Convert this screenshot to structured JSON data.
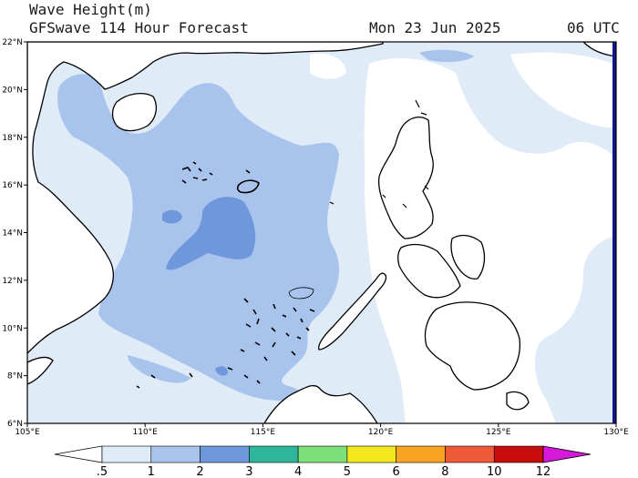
{
  "header": {
    "variable": "Wave Height(m)",
    "model": "GFSwave 114 Hour Forecast",
    "date": "Mon 23 Jun 2025",
    "time": "06 UTC"
  },
  "map": {
    "lat_labels": [
      "6°N",
      "8°N",
      "10°N",
      "12°N",
      "14°N",
      "16°N",
      "18°N",
      "20°N",
      "22°N"
    ],
    "lon_labels": [
      "105°E",
      "110°E",
      "115°E",
      "120°E",
      "125°E",
      "130°E"
    ],
    "lat_range": [
      6,
      22
    ],
    "lon_range": [
      105,
      130
    ],
    "region": "South China Sea / Philippines",
    "shading": "wave height (m), mostly 0.5–2 m over the South China Sea with a 2–3 m core near 113–115°E, 13–15°N"
  },
  "colorbar": {
    "labels": [
      ".5",
      "1",
      "2",
      "3",
      "4",
      "5",
      "6",
      "8",
      "10",
      "12"
    ],
    "colors": [
      "#e0ebf8",
      "#a9c4ec",
      "#6f98dc",
      "#2fb59a",
      "#7ee07b",
      "#f2e81c",
      "#f7a425",
      "#ee5a38",
      "#c70d0d",
      "#d41ad8"
    ],
    "below_color": "#ffffff"
  },
  "colors": {
    "ocean_low": "#e0ebf8",
    "band_1_2": "#a9c4ec",
    "band_2_3": "#6f98dc",
    "land": "#ffffff",
    "coast": "#000000",
    "right_edge": "#0e1a8a"
  }
}
